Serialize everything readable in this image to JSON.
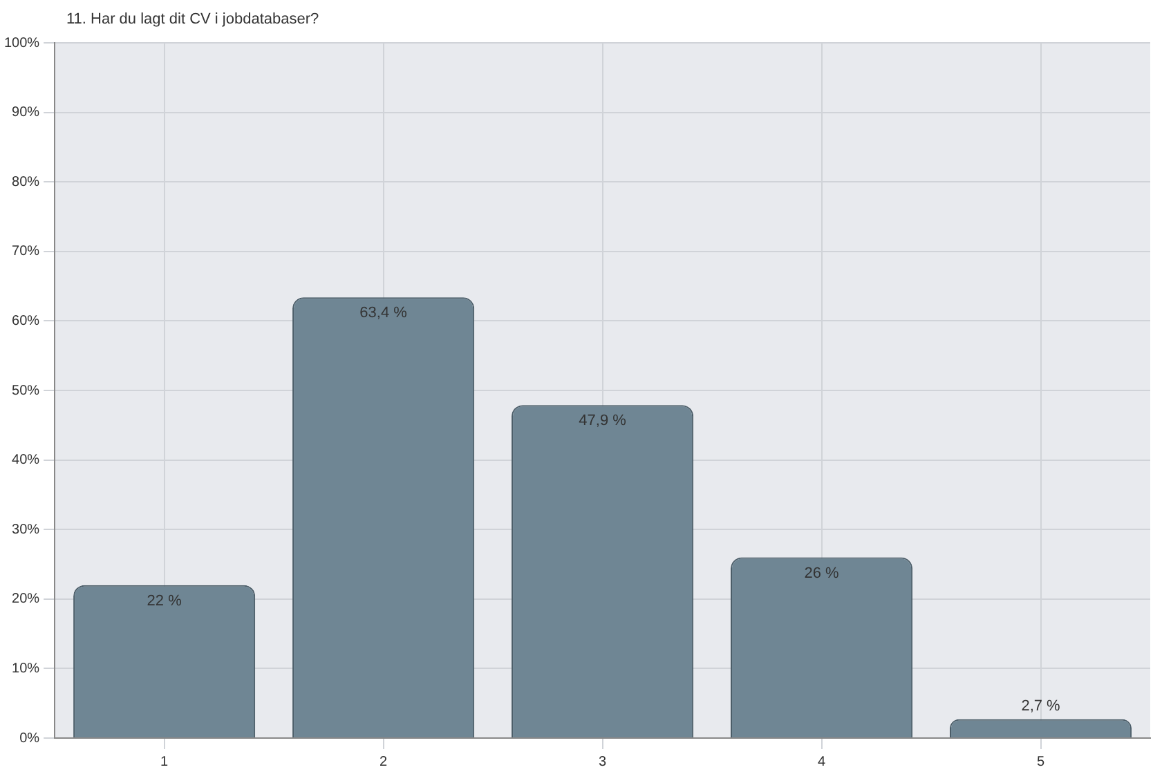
{
  "chart_data": {
    "type": "bar",
    "title": "11. Har du lagt dit CV i jobdatabaser?",
    "categories": [
      "1",
      "2",
      "3",
      "4",
      "5"
    ],
    "values": [
      22,
      63.4,
      47.9,
      26,
      2.7
    ],
    "value_labels": [
      "22 %",
      "63,4 %",
      "47,9 %",
      "26 %",
      "2,7 %"
    ],
    "color": "#6f8694",
    "ylim": [
      0,
      100
    ],
    "yticks": [
      {
        "value": 0,
        "label": "0%"
      },
      {
        "value": 10,
        "label": "10%"
      },
      {
        "value": 20,
        "label": "20%"
      },
      {
        "value": 30,
        "label": "30%"
      },
      {
        "value": 40,
        "label": "40%"
      },
      {
        "value": 50,
        "label": "50%"
      },
      {
        "value": 60,
        "label": "60%"
      },
      {
        "value": 70,
        "label": "70%"
      },
      {
        "value": 80,
        "label": "80%"
      },
      {
        "value": 90,
        "label": "90%"
      },
      {
        "value": 100,
        "label": "100%"
      }
    ],
    "grid": true,
    "legend": false
  }
}
